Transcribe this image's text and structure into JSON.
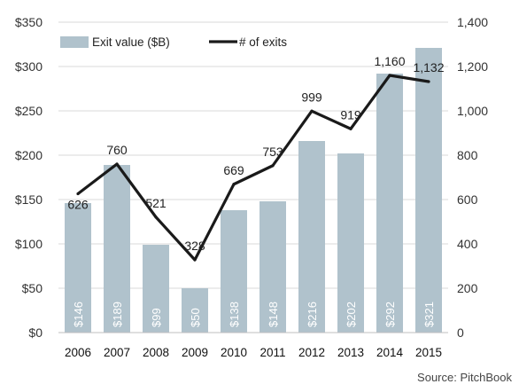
{
  "chart_data": {
    "type": "bar",
    "categories": [
      "2006",
      "2007",
      "2008",
      "2009",
      "2010",
      "2011",
      "2012",
      "2013",
      "2014",
      "2015"
    ],
    "series": [
      {
        "name": "Exit value ($B)",
        "type": "bar",
        "axis": "left",
        "values": [
          146,
          189,
          99,
          50,
          138,
          148,
          216,
          202,
          292,
          321
        ],
        "labels": [
          "$146",
          "$189",
          "$99",
          "$50",
          "$138",
          "$148",
          "$216",
          "$202",
          "$292",
          "$321"
        ]
      },
      {
        "name": "# of exits",
        "type": "line",
        "axis": "right",
        "values": [
          626,
          760,
          521,
          328,
          669,
          753,
          999,
          919,
          1160,
          1132
        ],
        "labels": [
          "626",
          "760",
          "521",
          "328",
          "669",
          "753",
          "999",
          "919",
          "1,160",
          "1,132"
        ]
      }
    ],
    "y_left": {
      "min": 0,
      "max": 350,
      "ticks": [
        0,
        50,
        100,
        150,
        200,
        250,
        300,
        350
      ],
      "tick_labels": [
        "$0",
        "$50",
        "$100",
        "$150",
        "$200",
        "$250",
        "$300",
        "$350"
      ]
    },
    "y_right": {
      "min": 0,
      "max": 1400,
      "ticks": [
        0,
        200,
        400,
        600,
        800,
        1000,
        1200,
        1400
      ],
      "tick_labels": [
        "0",
        "200",
        "400",
        "600",
        "800",
        "1,000",
        "1,200",
        "1,400"
      ]
    },
    "grid": true,
    "legend": "top-left",
    "colors": {
      "bar": "#b0c2cc",
      "line": "#1a1a1a",
      "grid": "#d9d9d9"
    },
    "source": "Source: PitchBook"
  }
}
